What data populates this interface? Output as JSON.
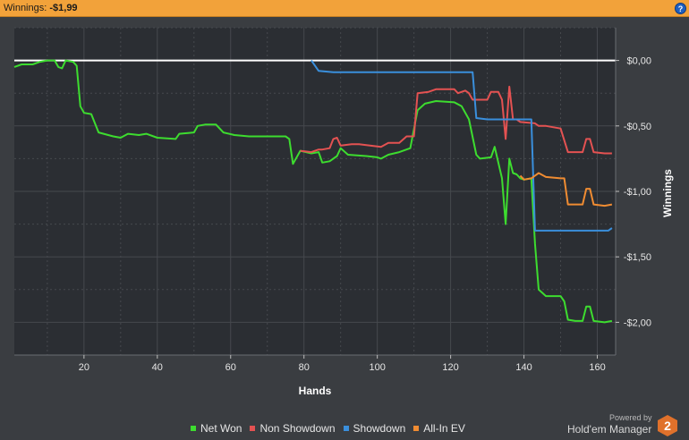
{
  "header": {
    "label": "Winnings:",
    "value": "-$1,99",
    "help_icon": "?"
  },
  "branding": {
    "powered_by": "Powered by",
    "name": "Hold'em Manager",
    "logo_digit": "2"
  },
  "colors": {
    "background": "#3a3d41",
    "plot_background": "#2b2e33",
    "grid": "#46494e",
    "header": "#f2a23a",
    "zero_line": "#ffffff"
  },
  "chart_data": {
    "type": "line",
    "xlabel": "Hands",
    "ylabel": "Winnings",
    "xlim": [
      1,
      165
    ],
    "ylim": [
      -2.25,
      0.25
    ],
    "grid": true,
    "legend_position": "bottom",
    "x_ticks": [
      20,
      40,
      60,
      80,
      100,
      120,
      140,
      160
    ],
    "x_tick_labels": [
      "20",
      "40",
      "60",
      "80",
      "100",
      "120",
      "140",
      "160"
    ],
    "y_ticks": [
      0,
      -0.5,
      -1,
      -1.5,
      -2
    ],
    "y_tick_labels": [
      "$0,00",
      "-$0,50",
      "-$1,00",
      "-$1,50",
      "-$2,00"
    ],
    "series": [
      {
        "name": "Net Won",
        "color": "#3ddc2f",
        "points": [
          [
            1,
            -0.05
          ],
          [
            3,
            -0.03
          ],
          [
            6,
            -0.03
          ],
          [
            8,
            -0.01
          ],
          [
            10,
            0.0
          ],
          [
            12,
            0.0
          ],
          [
            13,
            -0.05
          ],
          [
            14,
            -0.06
          ],
          [
            15,
            0.0
          ],
          [
            17,
            -0.01
          ],
          [
            18,
            -0.04
          ],
          [
            19,
            -0.35
          ],
          [
            20,
            -0.4
          ],
          [
            22,
            -0.41
          ],
          [
            24,
            -0.55
          ],
          [
            28,
            -0.58
          ],
          [
            30,
            -0.59
          ],
          [
            32,
            -0.56
          ],
          [
            35,
            -0.57
          ],
          [
            37,
            -0.56
          ],
          [
            40,
            -0.59
          ],
          [
            45,
            -0.6
          ],
          [
            46,
            -0.56
          ],
          [
            50,
            -0.55
          ],
          [
            51,
            -0.5
          ],
          [
            53,
            -0.49
          ],
          [
            56,
            -0.49
          ],
          [
            58,
            -0.55
          ],
          [
            61,
            -0.57
          ],
          [
            65,
            -0.58
          ],
          [
            75,
            -0.58
          ],
          [
            76,
            -0.6
          ],
          [
            77,
            -0.79
          ],
          [
            79,
            -0.69
          ],
          [
            82,
            -0.71
          ],
          [
            84,
            -0.7
          ],
          [
            85,
            -0.78
          ],
          [
            87,
            -0.77
          ],
          [
            89,
            -0.73
          ],
          [
            90,
            -0.67
          ],
          [
            92,
            -0.72
          ],
          [
            97,
            -0.73
          ],
          [
            100,
            -0.74
          ],
          [
            101,
            -0.75
          ],
          [
            103,
            -0.72
          ],
          [
            106,
            -0.7
          ],
          [
            109,
            -0.67
          ],
          [
            111,
            -0.38
          ],
          [
            113,
            -0.33
          ],
          [
            116,
            -0.31
          ],
          [
            121,
            -0.32
          ],
          [
            123,
            -0.35
          ],
          [
            125,
            -0.45
          ],
          [
            127,
            -0.72
          ],
          [
            128,
            -0.75
          ],
          [
            131,
            -0.74
          ],
          [
            132,
            -0.66
          ],
          [
            134,
            -0.9
          ],
          [
            135,
            -1.25
          ],
          [
            136,
            -0.75
          ],
          [
            137,
            -0.86
          ],
          [
            138,
            -0.87
          ],
          [
            139,
            -0.9
          ],
          [
            140,
            -0.91
          ],
          [
            142,
            -0.9
          ],
          [
            143,
            -1.4
          ],
          [
            144,
            -1.75
          ],
          [
            146,
            -1.8
          ],
          [
            150,
            -1.8
          ],
          [
            151,
            -1.84
          ],
          [
            152,
            -1.98
          ],
          [
            154,
            -1.99
          ],
          [
            156,
            -1.99
          ],
          [
            157,
            -1.88
          ],
          [
            158,
            -1.88
          ],
          [
            159,
            -1.99
          ],
          [
            162,
            -2.0
          ],
          [
            164,
            -1.99
          ]
        ]
      },
      {
        "name": "Non Showdown",
        "color": "#e45252",
        "points": [
          [
            79,
            -0.69
          ],
          [
            82,
            -0.7
          ],
          [
            84,
            -0.68
          ],
          [
            85,
            -0.68
          ],
          [
            87,
            -0.67
          ],
          [
            88,
            -0.6
          ],
          [
            89,
            -0.59
          ],
          [
            90,
            -0.65
          ],
          [
            93,
            -0.64
          ],
          [
            95,
            -0.64
          ],
          [
            98,
            -0.65
          ],
          [
            101,
            -0.66
          ],
          [
            103,
            -0.63
          ],
          [
            106,
            -0.63
          ],
          [
            108,
            -0.58
          ],
          [
            110,
            -0.58
          ],
          [
            111,
            -0.25
          ],
          [
            114,
            -0.24
          ],
          [
            116,
            -0.22
          ],
          [
            121,
            -0.22
          ],
          [
            122,
            -0.25
          ],
          [
            124,
            -0.23
          ],
          [
            125,
            -0.25
          ],
          [
            126,
            -0.3
          ],
          [
            130,
            -0.3
          ],
          [
            131,
            -0.24
          ],
          [
            133,
            -0.24
          ],
          [
            134,
            -0.3
          ],
          [
            135,
            -0.6
          ],
          [
            136,
            -0.2
          ],
          [
            137,
            -0.45
          ],
          [
            138,
            -0.45
          ],
          [
            139,
            -0.47
          ],
          [
            143,
            -0.48
          ],
          [
            144,
            -0.5
          ],
          [
            146,
            -0.5
          ],
          [
            150,
            -0.52
          ],
          [
            152,
            -0.7
          ],
          [
            154,
            -0.7
          ],
          [
            156,
            -0.7
          ],
          [
            157,
            -0.6
          ],
          [
            158,
            -0.6
          ],
          [
            159,
            -0.7
          ],
          [
            162,
            -0.71
          ],
          [
            164,
            -0.71
          ]
        ]
      },
      {
        "name": "Showdown",
        "color": "#3a8fdc",
        "points": [
          [
            82,
            0.0
          ],
          [
            84,
            -0.08
          ],
          [
            88,
            -0.09
          ],
          [
            126,
            -0.09
          ],
          [
            127,
            -0.44
          ],
          [
            130,
            -0.45
          ],
          [
            142,
            -0.45
          ],
          [
            143,
            -1.3
          ],
          [
            152,
            -1.3
          ],
          [
            163,
            -1.3
          ],
          [
            164,
            -1.28
          ]
        ]
      },
      {
        "name": "All-In EV",
        "color": "#f08c32",
        "points": [
          [
            139,
            -0.88
          ],
          [
            140,
            -0.91
          ],
          [
            142,
            -0.9
          ],
          [
            143,
            -0.88
          ],
          [
            144,
            -0.86
          ],
          [
            146,
            -0.89
          ],
          [
            150,
            -0.9
          ],
          [
            151,
            -0.9
          ],
          [
            152,
            -1.1
          ],
          [
            154,
            -1.1
          ],
          [
            156,
            -1.1
          ],
          [
            157,
            -0.98
          ],
          [
            158,
            -0.98
          ],
          [
            159,
            -1.1
          ],
          [
            162,
            -1.11
          ],
          [
            164,
            -1.1
          ]
        ]
      }
    ]
  }
}
